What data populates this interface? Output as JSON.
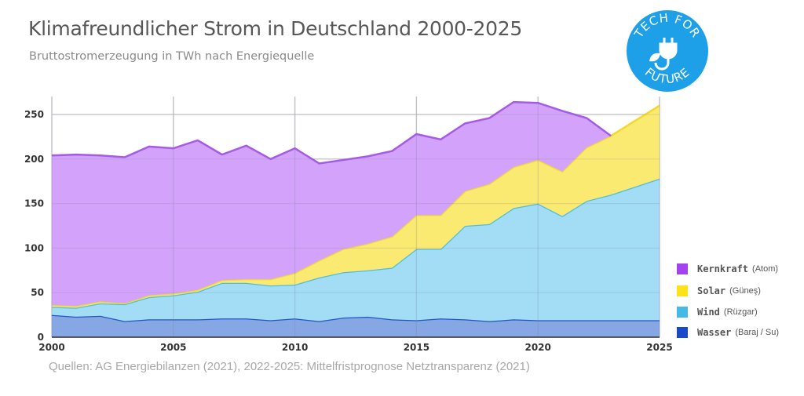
{
  "title": "Klimafreundlicher Strom in Deutschland 2000-2025",
  "subtitle": "Bruttostromerzeugung in TWh nach Energiequelle",
  "source": "Quellen: AG Energiebilanzen (2021), 2022-2025: Mittelfristprognose Netztransparenz (2021)",
  "logo": {
    "text_top": "TECH FOR",
    "text_bottom": "FUTURE",
    "color": "#1ea0e8",
    "icon": "plug-leaf-icon"
  },
  "legend": [
    {
      "name": "Kernkraft",
      "note": "(Atom)",
      "color": "#a144f0"
    },
    {
      "name": "Solar",
      "note": "(Güneş)",
      "color": "#fde21a"
    },
    {
      "name": "Wind",
      "note": "(Rüzgar)",
      "color": "#45b9e8"
    },
    {
      "name": "Wasser",
      "note": "(Baraj / Su)",
      "color": "#1849c8"
    }
  ],
  "chart_data": {
    "type": "area",
    "stacked": true,
    "title": "Klimafreundlicher Strom in Deutschland 2000-2025",
    "subtitle": "Bruttostromerzeugung in TWh nach Energiequelle",
    "xlabel": "",
    "ylabel": "",
    "x": [
      2000,
      2001,
      2002,
      2003,
      2004,
      2005,
      2006,
      2007,
      2008,
      2009,
      2010,
      2011,
      2012,
      2013,
      2014,
      2015,
      2016,
      2017,
      2018,
      2019,
      2020,
      2021,
      2022,
      2023,
      2024,
      2025
    ],
    "xlim": [
      2000,
      2025
    ],
    "ylim": [
      0,
      270
    ],
    "xticks": [
      2000,
      2005,
      2010,
      2015,
      2020,
      2025
    ],
    "yticks": [
      0,
      50,
      100,
      150,
      200,
      250
    ],
    "grid": true,
    "legend_position": "right",
    "series": [
      {
        "name": "Wasser",
        "fill": "#86a7e3",
        "line": "#1f56c8",
        "values": [
          25,
          23,
          24,
          18,
          20,
          20,
          20,
          21,
          21,
          19,
          21,
          18,
          22,
          23,
          20,
          19,
          21,
          20,
          18,
          20,
          19,
          19,
          19,
          19,
          19,
          19
        ]
      },
      {
        "name": "Wind",
        "fill": "#a3dcf5",
        "line": "#4dbee0",
        "values": [
          9,
          10,
          14,
          19,
          25,
          27,
          31,
          40,
          40,
          39,
          38,
          49,
          51,
          52,
          58,
          80,
          78,
          105,
          109,
          125,
          131,
          117,
          134,
          141,
          150,
          159
        ]
      },
      {
        "name": "Solar",
        "fill": "#fbea72",
        "line": "#f2d92a",
        "values": [
          2,
          2,
          2,
          1,
          2,
          2,
          2,
          3,
          4,
          7,
          13,
          19,
          26,
          30,
          35,
          38,
          38,
          39,
          45,
          46,
          49,
          50,
          60,
          66,
          74,
          82
        ]
      },
      {
        "name": "Kernkraft",
        "fill": "#d3a3fb",
        "line": "#a55be8",
        "values": [
          168,
          170,
          164,
          164,
          167,
          163,
          168,
          141,
          150,
          135,
          140,
          109,
          100,
          98,
          96,
          91,
          85,
          76,
          74,
          73,
          64,
          68,
          33,
          0,
          null,
          null
        ]
      }
    ]
  }
}
